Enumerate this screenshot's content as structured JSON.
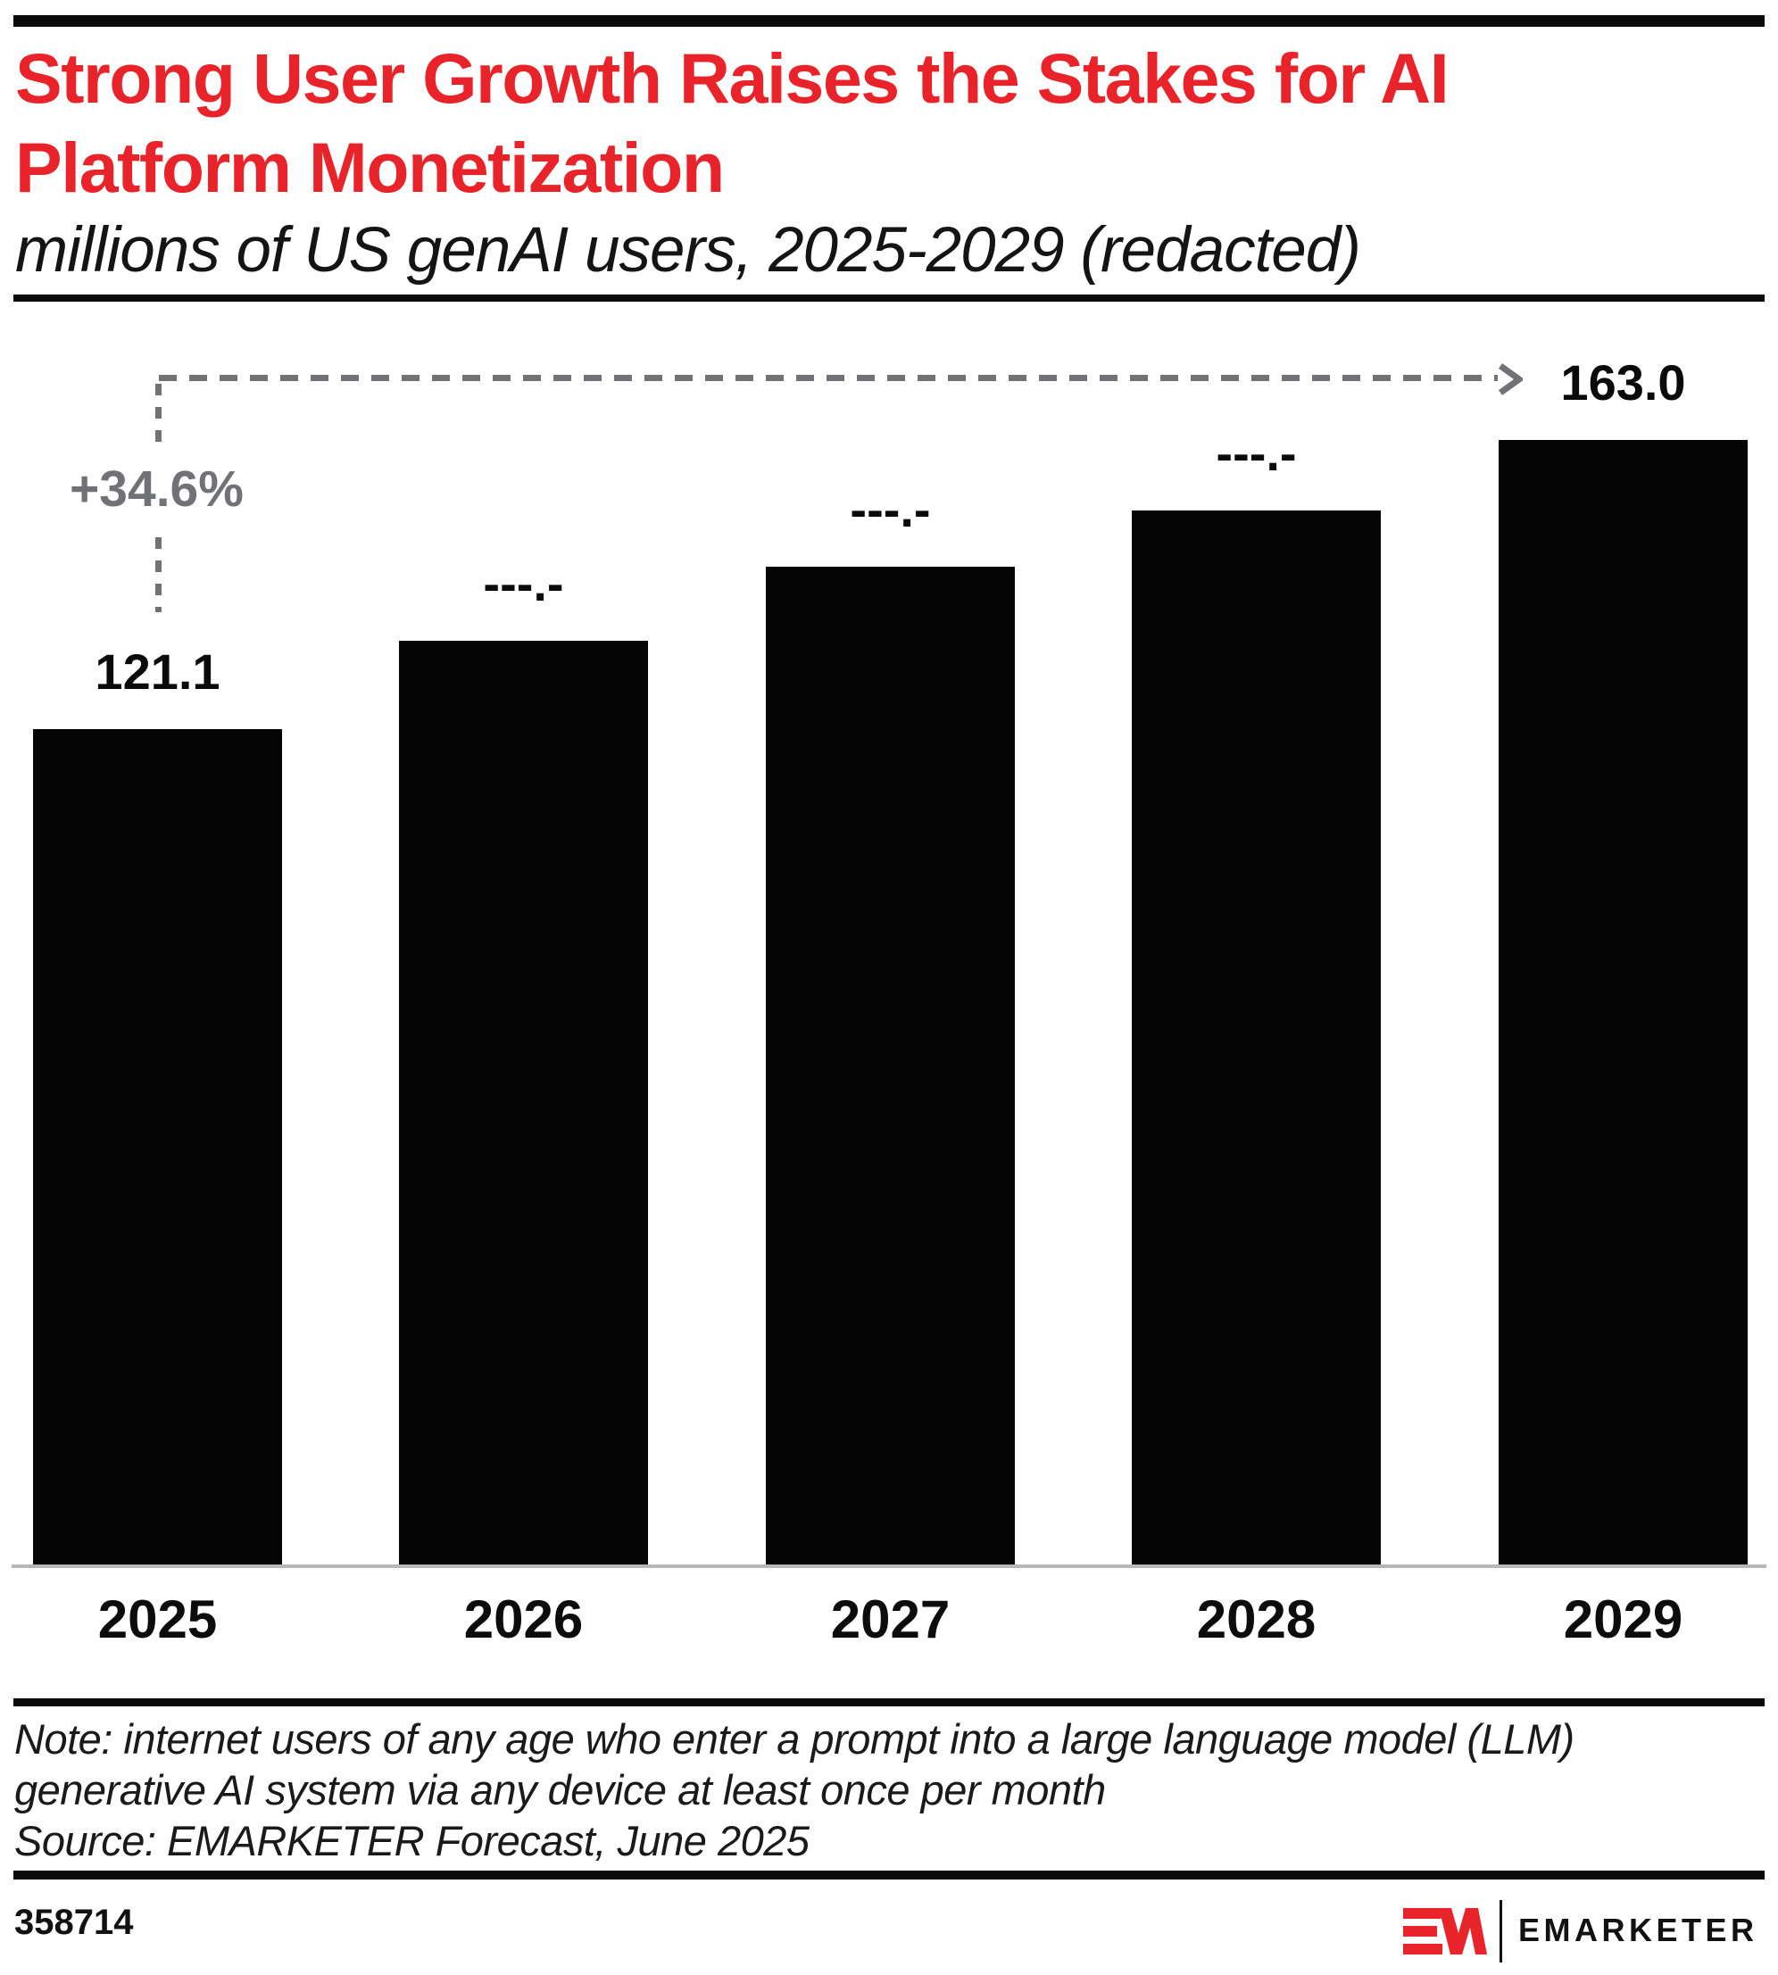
{
  "header": {
    "title_line1": "Strong User Growth Raises the Stakes for AI",
    "title_line2": "Platform Monetization",
    "subtitle": "millions of US genAI users, 2025-2029 (redacted)",
    "title_color": "#e82329"
  },
  "chart_data": {
    "type": "bar",
    "categories": [
      "2025",
      "2026",
      "2027",
      "2028",
      "2029"
    ],
    "values": [
      121.1,
      133.9,
      144.6,
      152.8,
      163.0
    ],
    "values_note": "2026-2028 labels are redacted in the image; those values are estimated from bar heights",
    "value_labels": [
      "121.1",
      "---.-",
      "---.-",
      "---.-",
      "163.0"
    ],
    "redacted_years": [
      "2026",
      "2027",
      "2028"
    ],
    "growth_annotation": {
      "label": "+34.6%",
      "from": "2025",
      "to": "2029"
    },
    "xlabel": "",
    "ylabel": "millions of US genAI users",
    "ylim": [
      0,
      170
    ],
    "grid": false,
    "legend": false,
    "bar_color": "#050505",
    "annotation_color": "#717276"
  },
  "footnote": {
    "note_line1": "Note: internet users of any age who enter a prompt into a large language model (LLM)",
    "note_line2": "generative AI system via any device at least once per month",
    "source_line": "Source: EMARKETER Forecast, June 2025"
  },
  "footer": {
    "chart_id": "358714",
    "logo_monogram": "EM",
    "brand": "EMARKETER",
    "brand_red": "#e8232a"
  }
}
